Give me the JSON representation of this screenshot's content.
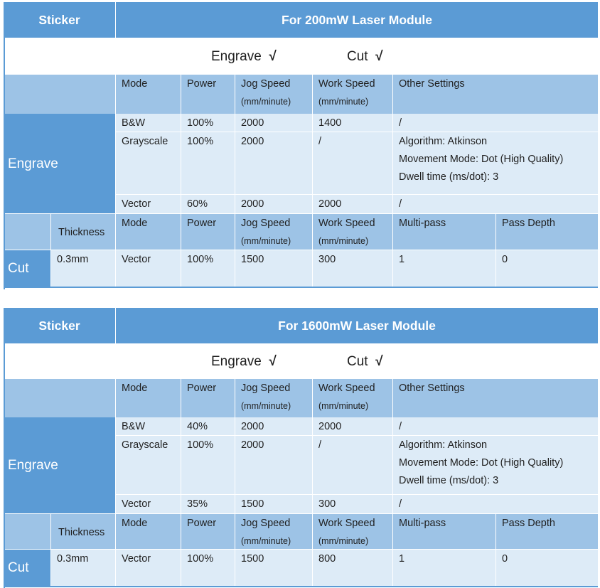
{
  "tables": [
    {
      "material": "Sticker",
      "module_title": "For 200mW Laser Module",
      "engrave_label": "Engrave",
      "cut_label": "Cut",
      "check": "√",
      "headers": {
        "mode": "Mode",
        "power": "Power",
        "jog_speed": "Jog Speed",
        "work_speed": "Work Speed",
        "unit": "(mm/minute)",
        "other_settings": "Other Settings",
        "thickness": "Thickness",
        "multi_pass": "Multi-pass",
        "pass_depth": "Pass Depth"
      },
      "engrave_rows": [
        {
          "mode": "B&W",
          "power": "100%",
          "jog": "2000",
          "work": "1400",
          "other": [
            "/"
          ]
        },
        {
          "mode": "Grayscale",
          "power": "100%",
          "jog": "2000",
          "work": "/",
          "other": [
            "Algorithm: Atkinson",
            "Movement Mode: Dot (High Quality)",
            "Dwell time (ms/dot): 3"
          ]
        },
        {
          "mode": "Vector",
          "power": "60%",
          "jog": "2000",
          "work": "2000",
          "other": [
            "/"
          ]
        }
      ],
      "cut_row": {
        "thickness": "0.3mm",
        "mode": "Vector",
        "power": "100%",
        "jog": "1500",
        "work": "300",
        "multi_pass": "1",
        "pass_depth": "0"
      }
    },
    {
      "material": "Sticker",
      "module_title": "For 1600mW Laser Module",
      "engrave_label": "Engrave",
      "cut_label": "Cut",
      "check": "√",
      "headers": {
        "mode": "Mode",
        "power": "Power",
        "jog_speed": "Jog Speed",
        "work_speed": "Work Speed",
        "unit": "(mm/minute)",
        "other_settings": "Other Settings",
        "thickness": "Thickness",
        "multi_pass": "Multi-pass",
        "pass_depth": "Pass Depth"
      },
      "engrave_rows": [
        {
          "mode": "B&W",
          "power": "40%",
          "jog": "2000",
          "work": "2000",
          "other": [
            "/"
          ]
        },
        {
          "mode": "Grayscale",
          "power": "100%",
          "jog": "2000",
          "work": "/",
          "other": [
            "Algorithm: Atkinson",
            "Movement Mode: Dot (High Quality)",
            "Dwell time (ms/dot): 3"
          ]
        },
        {
          "mode": "Vector",
          "power": "35%",
          "jog": "1500",
          "work": "300",
          "other": [
            "/"
          ]
        }
      ],
      "cut_row": {
        "thickness": "0.3mm",
        "mode": "Vector",
        "power": "100%",
        "jog": "1500",
        "work": "800",
        "multi_pass": "1",
        "pass_depth": "0"
      }
    }
  ]
}
